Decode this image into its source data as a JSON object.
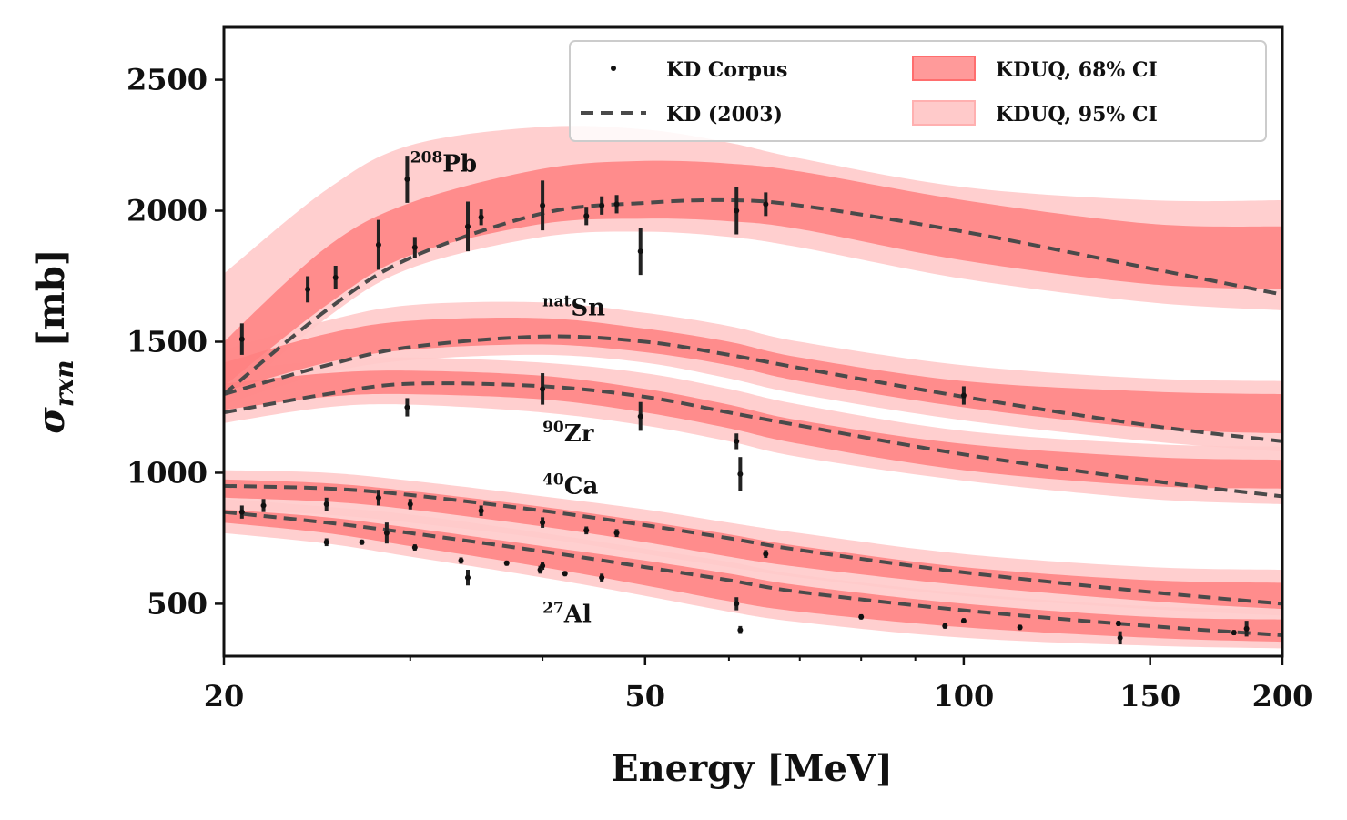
{
  "chart_data": {
    "type": "line",
    "xlabel": "Energy [MeV]",
    "ylabel_symbol": "σ",
    "ylabel_subscript": "rxn",
    "ylabel_unit": "[mb]",
    "xscale": "log",
    "xlim": [
      20,
      200
    ],
    "ylim": [
      300,
      2700
    ],
    "xticks": [
      20,
      50,
      100,
      150,
      200
    ],
    "xtick_labels": [
      "20",
      "50",
      "100",
      "150",
      "200"
    ],
    "yticks": [
      500,
      1000,
      1500,
      2000,
      2500
    ],
    "ytick_labels": [
      "500",
      "1000",
      "1500",
      "2000",
      "2500"
    ],
    "legend": {
      "placement": "top-right",
      "entries": [
        {
          "label": "KD Corpus",
          "kind": "marker"
        },
        {
          "label": "KD (2003)",
          "kind": "dashed"
        },
        {
          "label": "KDUQ, 68% CI",
          "kind": "band68"
        },
        {
          "label": "KDUQ, 95% CI",
          "kind": "band95"
        }
      ]
    },
    "colors": {
      "band68": "#ff8080",
      "band95": "#ffcaca",
      "kd_line": "#4a4a4a",
      "points": "#111111"
    },
    "series": [
      {
        "name": "208Pb",
        "label_sup": "208",
        "label_main": "Pb",
        "label_at": [
          30,
          2150
        ],
        "x": [
          20,
          25,
          30,
          40,
          50,
          60,
          70,
          100,
          150,
          200
        ],
        "kd": [
          1300,
          1620,
          1820,
          1990,
          2030,
          2040,
          2020,
          1920,
          1780,
          1680
        ],
        "ci68_lo": [
          1330,
          1640,
          1830,
          1950,
          1970,
          1960,
          1930,
          1810,
          1720,
          1700
        ],
        "ci68_hi": [
          1500,
          1860,
          2030,
          2160,
          2190,
          2180,
          2150,
          2040,
          1950,
          1940
        ],
        "ci95_lo": [
          1260,
          1590,
          1780,
          1900,
          1920,
          1900,
          1860,
          1740,
          1650,
          1620
        ],
        "ci95_hi": [
          1760,
          2080,
          2250,
          2320,
          2310,
          2260,
          2200,
          2090,
          2040,
          2040
        ],
        "points": [
          {
            "x": 20.8,
            "y": 1510,
            "err": 60
          },
          {
            "x": 24.0,
            "y": 1700,
            "err": 50
          },
          {
            "x": 25.5,
            "y": 1745,
            "err": 45
          },
          {
            "x": 28.0,
            "y": 1870,
            "err": 95
          },
          {
            "x": 29.8,
            "y": 2120,
            "err": 90
          },
          {
            "x": 30.3,
            "y": 1860,
            "err": 40
          },
          {
            "x": 34.0,
            "y": 1940,
            "err": 95
          },
          {
            "x": 35.0,
            "y": 1975,
            "err": 30
          },
          {
            "x": 40.0,
            "y": 2020,
            "err": 95
          },
          {
            "x": 44.0,
            "y": 1980,
            "err": 35
          },
          {
            "x": 45.5,
            "y": 2020,
            "err": 35
          },
          {
            "x": 47.0,
            "y": 2025,
            "err": 35
          },
          {
            "x": 49.5,
            "y": 1845,
            "err": 90
          },
          {
            "x": 61.0,
            "y": 2000,
            "err": 90
          },
          {
            "x": 65.0,
            "y": 2025,
            "err": 45
          }
        ]
      },
      {
        "name": "natSn",
        "label_sup": "nat",
        "label_main": "Sn",
        "label_at": [
          40,
          1600
        ],
        "x": [
          20,
          25,
          30,
          40,
          50,
          60,
          70,
          100,
          150,
          200
        ],
        "kd": [
          1300,
          1410,
          1480,
          1520,
          1500,
          1450,
          1400,
          1290,
          1180,
          1120
        ],
        "ci68_lo": [
          1310,
          1420,
          1470,
          1490,
          1460,
          1410,
          1350,
          1250,
          1170,
          1150
        ],
        "ci68_hi": [
          1420,
          1530,
          1580,
          1590,
          1550,
          1500,
          1440,
          1350,
          1310,
          1300
        ],
        "ci95_lo": [
          1260,
          1380,
          1430,
          1450,
          1420,
          1360,
          1300,
          1200,
          1120,
          1080
        ],
        "ci95_hi": [
          1470,
          1580,
          1640,
          1650,
          1610,
          1560,
          1500,
          1410,
          1360,
          1350
        ],
        "points": [
          {
            "x": 100.0,
            "y": 1295,
            "err": 35
          }
        ]
      },
      {
        "name": "90Zr",
        "label_sup": "90",
        "label_main": "Zr",
        "label_at": [
          40,
          1120
        ],
        "x": [
          20,
          25,
          30,
          40,
          50,
          60,
          70,
          100,
          150,
          200
        ],
        "kd": [
          1230,
          1300,
          1340,
          1330,
          1290,
          1230,
          1180,
          1070,
          970,
          910
        ],
        "ci68_lo": [
          1240,
          1290,
          1300,
          1280,
          1230,
          1170,
          1110,
          1010,
          950,
          940
        ],
        "ci68_hi": [
          1340,
          1380,
          1390,
          1370,
          1320,
          1260,
          1200,
          1110,
          1060,
          1050
        ],
        "ci95_lo": [
          1190,
          1250,
          1260,
          1230,
          1180,
          1120,
          1060,
          970,
          900,
          880
        ],
        "ci95_hi": [
          1390,
          1430,
          1440,
          1420,
          1380,
          1320,
          1260,
          1160,
          1110,
          1100
        ],
        "points": [
          {
            "x": 29.8,
            "y": 1250,
            "err": 35
          },
          {
            "x": 40.0,
            "y": 1320,
            "err": 60
          },
          {
            "x": 49.5,
            "y": 1215,
            "err": 55
          },
          {
            "x": 61.0,
            "y": 1120,
            "err": 30
          },
          {
            "x": 61.5,
            "y": 995,
            "err": 65
          }
        ]
      },
      {
        "name": "40Ca",
        "label_sup": "40",
        "label_main": "Ca",
        "label_at": [
          40,
          920
        ],
        "x": [
          20,
          25,
          30,
          40,
          50,
          60,
          70,
          100,
          150,
          200
        ],
        "kd": [
          950,
          940,
          915,
          855,
          800,
          750,
          705,
          620,
          545,
          500
        ],
        "ci68_lo": [
          905,
          890,
          860,
          795,
          735,
          680,
          640,
          570,
          510,
          480
        ],
        "ci68_hi": [
          975,
          960,
          930,
          870,
          815,
          765,
          720,
          640,
          590,
          580
        ],
        "ci95_lo": [
          860,
          840,
          810,
          750,
          690,
          640,
          600,
          530,
          480,
          455
        ],
        "ci95_hi": [
          1010,
          1000,
          970,
          910,
          860,
          810,
          770,
          690,
          640,
          630
        ],
        "points": [
          {
            "x": 20.8,
            "y": 850,
            "err": 25
          },
          {
            "x": 21.8,
            "y": 875,
            "err": 25
          },
          {
            "x": 25.0,
            "y": 880,
            "err": 25
          },
          {
            "x": 28.0,
            "y": 905,
            "err": 30
          },
          {
            "x": 30.0,
            "y": 880,
            "err": 20
          },
          {
            "x": 35.0,
            "y": 855,
            "err": 20
          },
          {
            "x": 40.0,
            "y": 810,
            "err": 20
          },
          {
            "x": 44.0,
            "y": 780,
            "err": 15
          },
          {
            "x": 47.0,
            "y": 770,
            "err": 15
          },
          {
            "x": 65.0,
            "y": 690,
            "err": 15
          }
        ]
      },
      {
        "name": "27Al",
        "label_sup": "27",
        "label_main": "Al",
        "label_at": [
          40,
          430
        ],
        "x": [
          20,
          25,
          30,
          40,
          50,
          60,
          70,
          100,
          150,
          200
        ],
        "kd": [
          850,
          810,
          770,
          700,
          640,
          590,
          545,
          475,
          415,
          380
        ],
        "ci68_lo": [
          810,
          770,
          720,
          640,
          570,
          510,
          470,
          410,
          370,
          355
        ],
        "ci68_hi": [
          860,
          830,
          790,
          720,
          665,
          615,
          570,
          500,
          450,
          440
        ],
        "ci95_lo": [
          770,
          730,
          680,
          600,
          530,
          470,
          430,
          370,
          340,
          330
        ],
        "ci95_hi": [
          900,
          870,
          840,
          770,
          710,
          660,
          610,
          540,
          490,
          480
        ],
        "points": [
          {
            "x": 25.0,
            "y": 735,
            "err": 15
          },
          {
            "x": 27.0,
            "y": 735,
            "err": 10
          },
          {
            "x": 28.5,
            "y": 770,
            "err": 40
          },
          {
            "x": 30.3,
            "y": 715,
            "err": 12
          },
          {
            "x": 33.5,
            "y": 665,
            "err": 12
          },
          {
            "x": 34.0,
            "y": 600,
            "err": 30
          },
          {
            "x": 37.0,
            "y": 655,
            "err": 10
          },
          {
            "x": 39.8,
            "y": 630,
            "err": 15
          },
          {
            "x": 40.0,
            "y": 645,
            "err": 15
          },
          {
            "x": 42.0,
            "y": 615,
            "err": 10
          },
          {
            "x": 45.5,
            "y": 600,
            "err": 15
          },
          {
            "x": 61.0,
            "y": 500,
            "err": 25
          },
          {
            "x": 61.5,
            "y": 400,
            "err": 15
          },
          {
            "x": 80.0,
            "y": 450,
            "err": 10
          },
          {
            "x": 96.0,
            "y": 415,
            "err": 10
          },
          {
            "x": 100.0,
            "y": 435,
            "err": 10
          },
          {
            "x": 113.0,
            "y": 410,
            "err": 10
          },
          {
            "x": 140.0,
            "y": 425,
            "err": 10
          },
          {
            "x": 140.5,
            "y": 370,
            "err": 25
          },
          {
            "x": 180.0,
            "y": 390,
            "err": 10
          },
          {
            "x": 185.0,
            "y": 405,
            "err": 30
          }
        ]
      }
    ]
  }
}
